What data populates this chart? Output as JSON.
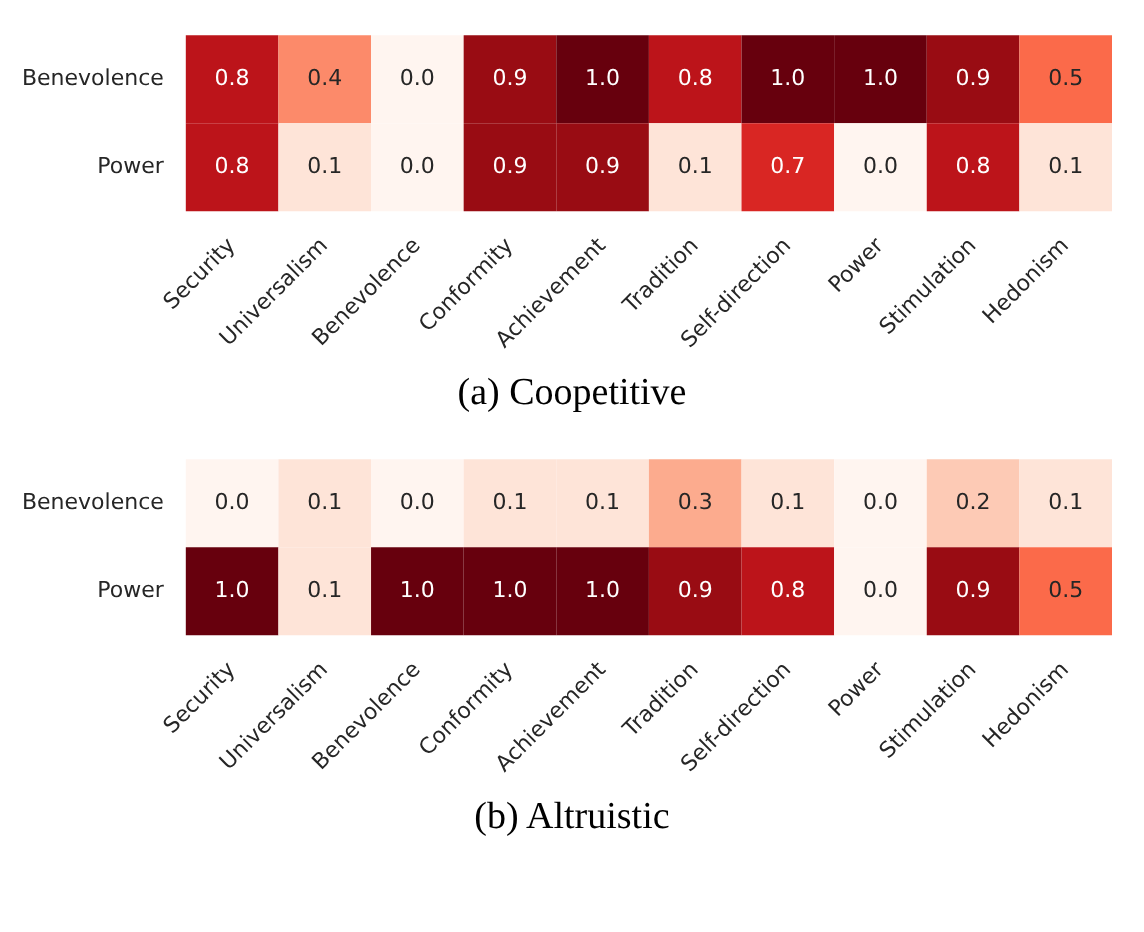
{
  "chart_data": [
    {
      "type": "heatmap",
      "title": "(a) Coopetitive",
      "data_labels": true,
      "categories": [
        "Security",
        "Universalism",
        "Benevolence",
        "Conformity",
        "Achievement",
        "Tradition",
        "Self-direction",
        "Power",
        "Stimulation",
        "Hedonism"
      ],
      "y_categories": [
        "Benevolence",
        "Power"
      ],
      "cells": [
        [
          0.8,
          0.4,
          0.0,
          0.9,
          1.0,
          0.8,
          1.0,
          1.0,
          0.9,
          0.5
        ],
        [
          0.8,
          0.1,
          0.0,
          0.9,
          0.9,
          0.1,
          0.7,
          0.0,
          0.8,
          0.1
        ]
      ],
      "cell_labels": [
        [
          "0.8",
          "0.4",
          "0.0",
          "0.9",
          "1.0",
          "0.8",
          "1.0",
          "1.0",
          "0.9",
          "0.5"
        ],
        [
          "0.8",
          "0.1",
          "0.0",
          "0.9",
          "0.9",
          "0.1",
          "0.7",
          "0.0",
          "0.8",
          "0.1"
        ]
      ]
    },
    {
      "type": "heatmap",
      "title": "(b) Altruistic",
      "data_labels": true,
      "categories": [
        "Security",
        "Universalism",
        "Benevolence",
        "Conformity",
        "Achievement",
        "Tradition",
        "Self-direction",
        "Power",
        "Stimulation",
        "Hedonism"
      ],
      "y_categories": [
        "Benevolence",
        "Power"
      ],
      "cells": [
        [
          0.0,
          0.1,
          0.0,
          0.1,
          0.1,
          0.3,
          0.1,
          0.0,
          0.2,
          0.1
        ],
        [
          1.0,
          0.1,
          1.0,
          1.0,
          1.0,
          0.9,
          0.8,
          0.0,
          0.9,
          0.5
        ]
      ],
      "cell_labels": [
        [
          "0.0",
          "0.1",
          "0.0",
          "0.1",
          "0.1",
          "0.3",
          "0.1",
          "0.0",
          "0.2",
          "0.1"
        ],
        [
          "1.0",
          "0.1",
          "1.0",
          "1.0",
          "1.0",
          "0.9",
          "0.8",
          "0.0",
          "0.9",
          "0.5"
        ]
      ]
    }
  ]
}
